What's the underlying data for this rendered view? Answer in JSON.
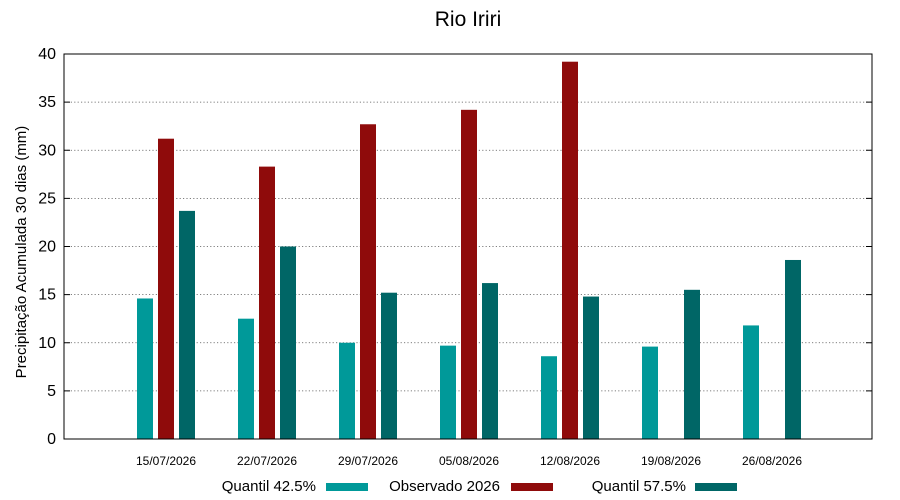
{
  "chart_data": {
    "type": "bar",
    "title": "Rio Iriri",
    "xlabel": "",
    "ylabel": "Precipitação Acumulada 30 dias (mm)",
    "ylim": [
      0,
      40
    ],
    "yticks": [
      0,
      5,
      10,
      15,
      20,
      25,
      30,
      35,
      40
    ],
    "grid": true,
    "legend_position": "bottom",
    "categories": [
      "15/07/2026",
      "22/07/2026",
      "29/07/2026",
      "05/08/2026",
      "12/08/2026",
      "19/08/2026",
      "26/08/2026"
    ],
    "series": [
      {
        "name": "Quantil 42.5%",
        "color": "#009999",
        "values": [
          14.6,
          12.5,
          10.0,
          9.7,
          8.6,
          9.6,
          11.8
        ]
      },
      {
        "name": "Observado 2026",
        "color": "#8f0b0b",
        "values": [
          31.2,
          28.3,
          32.7,
          34.2,
          39.2,
          null,
          null
        ]
      },
      {
        "name": "Quantil 57.5%",
        "color": "#006666",
        "values": [
          23.7,
          20.0,
          15.2,
          16.2,
          14.8,
          15.5,
          18.6
        ]
      }
    ]
  }
}
